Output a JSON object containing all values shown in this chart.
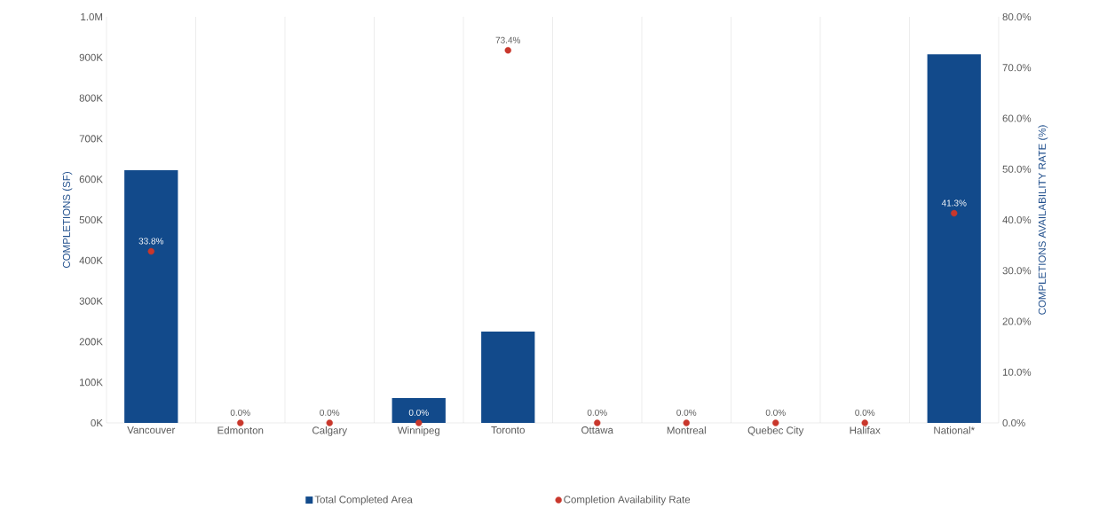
{
  "chart_data": {
    "type": "bar",
    "categories": [
      "Vancouver",
      "Edmonton",
      "Calgary",
      "Winnipeg",
      "Toronto",
      "Ottawa",
      "Montreal",
      "Quebec City",
      "Halifax",
      "National*"
    ],
    "ylabel": "COMPLETIONS (SF)",
    "y2label": "COMPLETIONS AVAILABILITY RATE (%)",
    "ylim": [
      0,
      1000000
    ],
    "yticks": [
      {
        "value": 0,
        "label": "0K"
      },
      {
        "value": 100000,
        "label": "100K"
      },
      {
        "value": 200000,
        "label": "200K"
      },
      {
        "value": 300000,
        "label": "300K"
      },
      {
        "value": 400000,
        "label": "400K"
      },
      {
        "value": 500000,
        "label": "500K"
      },
      {
        "value": 600000,
        "label": "600K"
      },
      {
        "value": 700000,
        "label": "700K"
      },
      {
        "value": 800000,
        "label": "800K"
      },
      {
        "value": 900000,
        "label": "900K"
      },
      {
        "value": 1000000,
        "label": "1.0M"
      }
    ],
    "y2lim": [
      0,
      80
    ],
    "y2ticks": [
      {
        "value": 0,
        "label": "0.0%"
      },
      {
        "value": 10,
        "label": "10.0%"
      },
      {
        "value": 20,
        "label": "20.0%"
      },
      {
        "value": 30,
        "label": "30.0%"
      },
      {
        "value": 40,
        "label": "40.0%"
      },
      {
        "value": 50,
        "label": "50.0%"
      },
      {
        "value": 60,
        "label": "60.0%"
      },
      {
        "value": 70,
        "label": "70.0%"
      },
      {
        "value": 80,
        "label": "80.0%"
      }
    ],
    "grid": "x",
    "legend": "bottom",
    "marker": "circle",
    "series": [
      {
        "name": "Total Completed Area",
        "color": "#124a8b",
        "values": [
          622000,
          0,
          0,
          61000,
          225000,
          0,
          0,
          0,
          0,
          908000
        ]
      },
      {
        "name": "Completion Availability Rate",
        "type": "scatter",
        "axis": "y2",
        "color": "#c9372c",
        "values": [
          33.8,
          0,
          0,
          0,
          73.4,
          0,
          0,
          0,
          0,
          41.3
        ],
        "value_labels": [
          "33.8%",
          "0.0%",
          "0.0%",
          "0.0%",
          "73.4%",
          "0.0%",
          "0.0%",
          "0.0%",
          "0.0%",
          "41.3%"
        ]
      }
    ]
  }
}
